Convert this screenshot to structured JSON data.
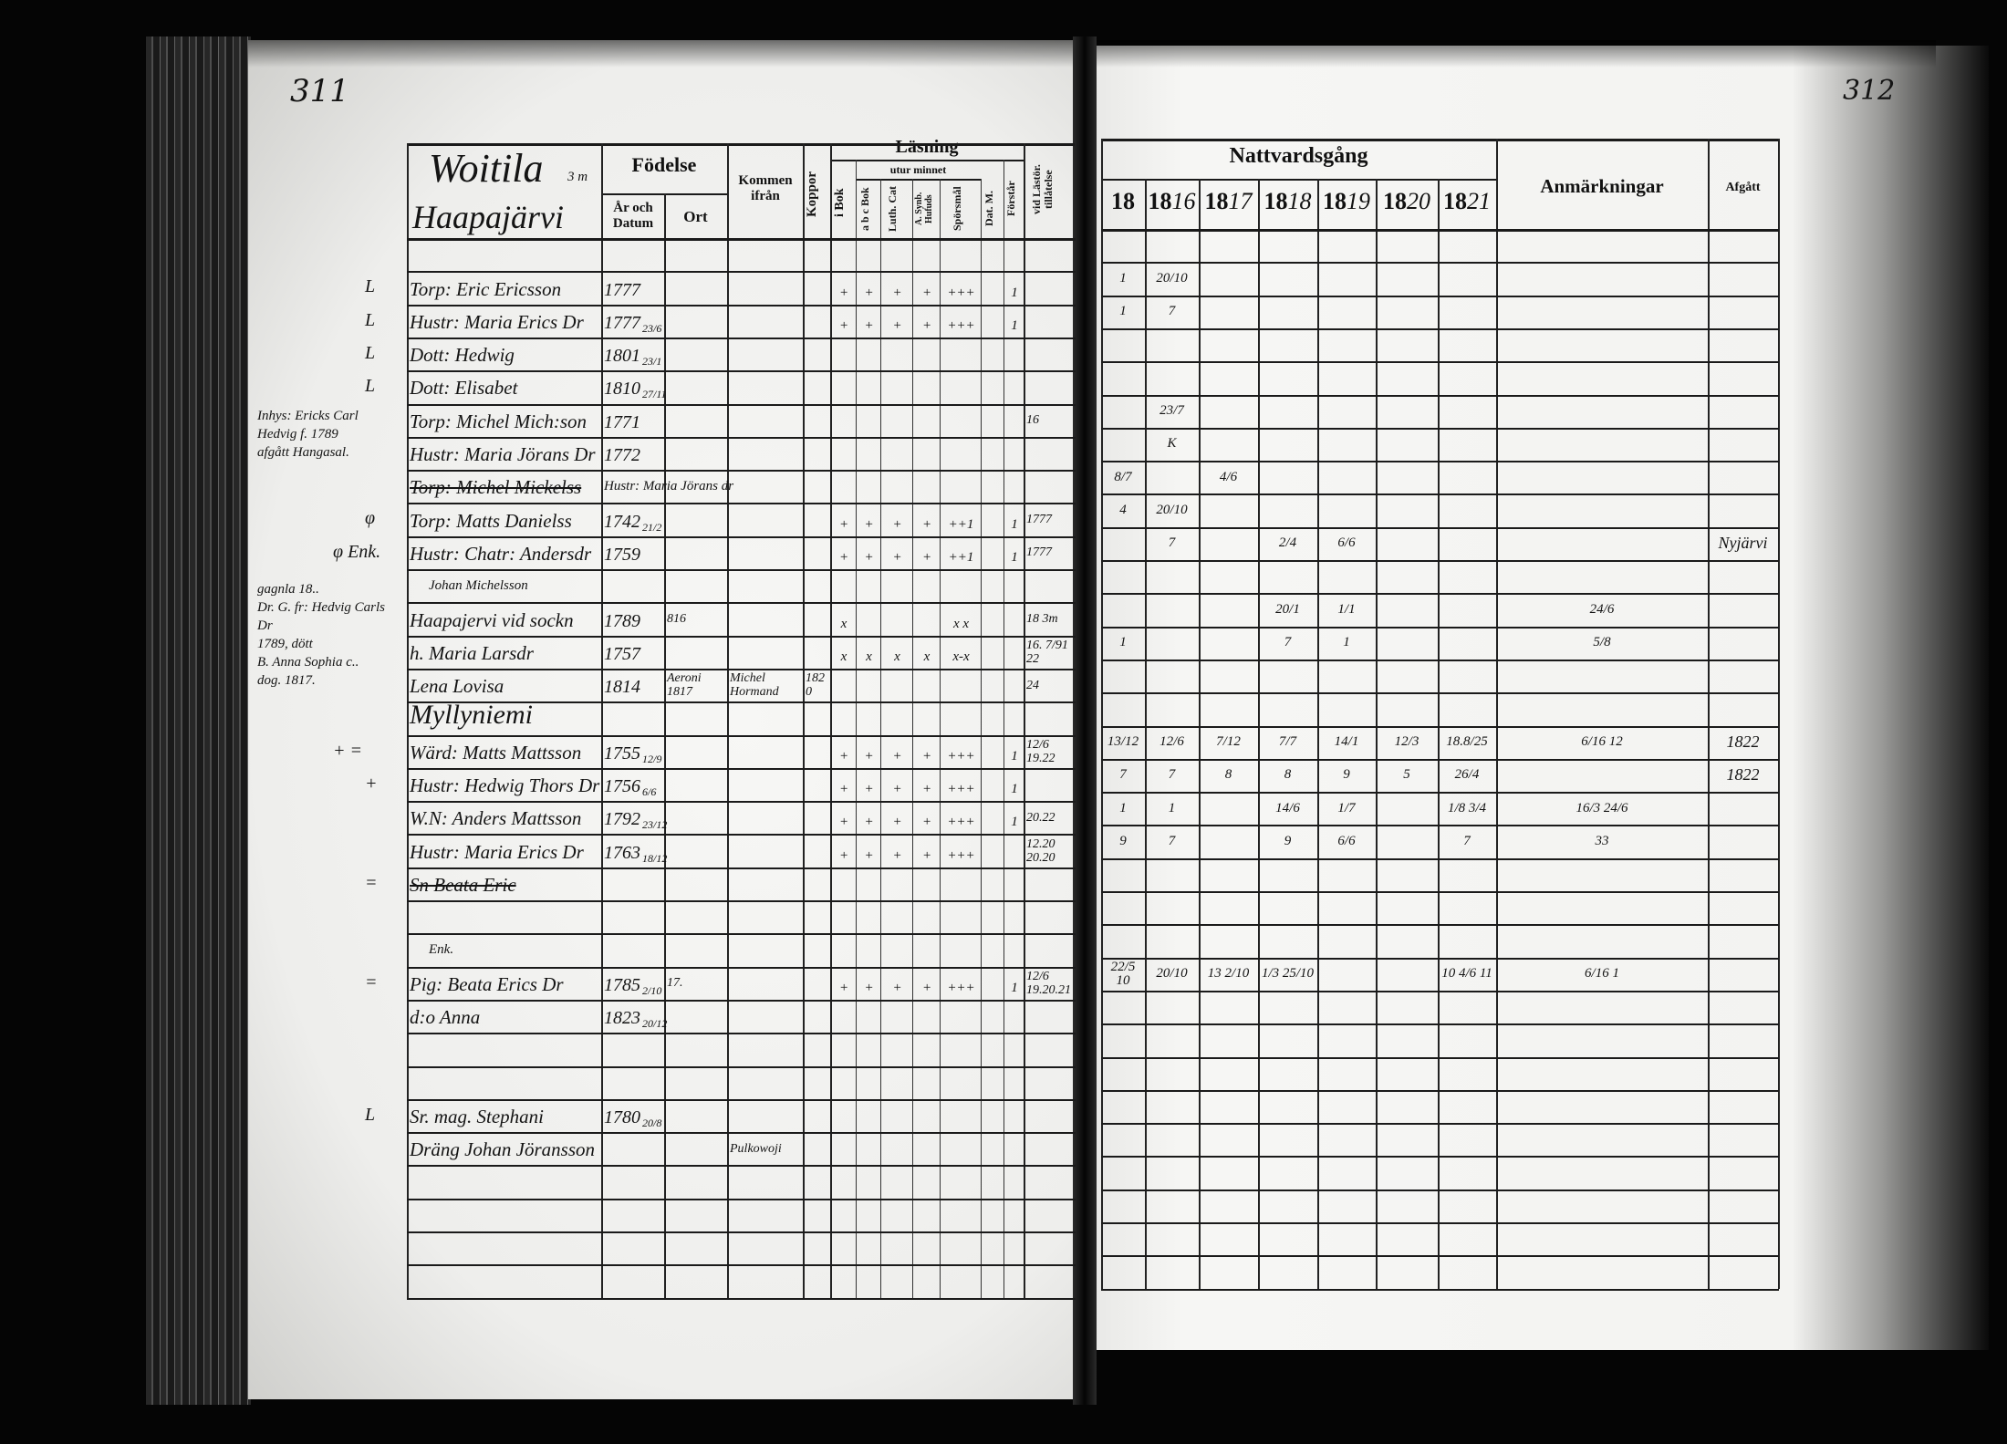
{
  "page_numbers": {
    "left": "311",
    "right": "312"
  },
  "left": {
    "header": {
      "place_name": "Woitila",
      "place_sub": "3 m",
      "village": "Haapajärvi",
      "fodelse": "Födelse",
      "ar_och_datum": "År och Datum",
      "ort": "Ort",
      "kommen_ifran": "Kommen ifrån",
      "koppor": "Koppor",
      "lasning": "Läsning",
      "utur_minnet": "utur minnet",
      "i_bok": "i Bok",
      "abc_bok": "a b c Bok",
      "luth_cat": "Luth. Cat",
      "a_synb": "A. Synb. Hufuds",
      "sporsmal": "Spörsmål",
      "dat_m": "Dat. M.",
      "forstar": "Förstår",
      "vid_lastor": "vid Lästör. tillåtelse"
    },
    "margin_notes": [
      [
        "Inhys: Ericks Carl",
        "Hedvig f. 1789",
        "afgått Hangasal."
      ],
      [
        "gagnla 18..",
        "Dr. G. fr: Hedvig Carls Dr",
        "1789, dött",
        "B. Anna Sophia c..",
        "dog. 1817."
      ]
    ],
    "rows": [
      {},
      {
        "margin": "L",
        "name": "Torp: Eric Ericsson",
        "year": "1777",
        "i_bok": "+",
        "abc_bok": "+",
        "luth_cat": "+",
        "a_synb": "+",
        "sporsmal": "+++",
        "forstar": "1"
      },
      {
        "margin": "L",
        "name": "Hustr: Maria Erics Dr",
        "year": "1777",
        "date": "23/6",
        "i_bok": "+",
        "abc_bok": "+",
        "luth_cat": "+",
        "a_synb": "+",
        "sporsmal": "+++",
        "forstar": "1"
      },
      {
        "margin": "L",
        "name": "Dott: Hedwig",
        "year": "1801",
        "date": "23/1"
      },
      {
        "margin": "L",
        "name": "Dott: Elisabet",
        "year": "1810",
        "date": "27/11"
      },
      {
        "name": "Torp: Michel Mich:son",
        "year": "1771",
        "vid_lastor": "16"
      },
      {
        "name": "Hustr: Maria Jörans Dr",
        "year": "1772"
      },
      {
        "name": "Torp: Michel Mickelss",
        "struck": true
      },
      {
        "margin": "φ",
        "note_above": "Hustr: Maria Jörans dr",
        "name": "Torp: Matts Danielss",
        "year": "1742",
        "date": "21/2",
        "i_bok": "+",
        "abc_bok": "+",
        "luth_cat": "+",
        "a_synb": "+",
        "sporsmal": "++1",
        "forstar": "1",
        "vid_lastor": "1777"
      },
      {
        "margin": "φ Enk.",
        "name": "Hustr: Chatr: Andersdr",
        "year": "1759",
        "i_bok": "+",
        "abc_bok": "+",
        "luth_cat": "+",
        "a_synb": "+",
        "sporsmal": "++1",
        "forstar": "1",
        "vid_lastor": "1777"
      },
      {},
      {
        "note_above": "Johan Michelsson",
        "name": "Haapajervi vid sockn",
        "year": "1789",
        "ort": "816",
        "i_bok": "x",
        "sporsmal": "x x",
        "vid_lastor": "18 3m"
      },
      {
        "name": "h. Maria Larsdr",
        "year": "1757",
        "i_bok": "x",
        "abc_bok": "x",
        "luth_cat": "x",
        "a_synb": "x",
        "sporsmal": "x-x",
        "vid_lastor": "16. 7/91 22"
      },
      {
        "name": "Lena Lovisa",
        "year": "1814",
        "ort": "Aeroni 1817",
        "kommen": "Michel Hormand",
        "koppor": "1820",
        "vid_lastor": "24"
      },
      {
        "name": "Myllyniemi",
        "heading": true
      },
      {
        "margin": "+ =",
        "name": "Wärd: Matts Mattsson",
        "year": "1755",
        "date": "12/9",
        "i_bok": "+",
        "abc_bok": "+",
        "luth_cat": "+",
        "a_synb": "+",
        "sporsmal": "+++",
        "forstar": "1",
        "vid_lastor": "12/6 19.22"
      },
      {
        "margin": "+",
        "name": "Hustr: Hedwig Thors Dr",
        "year": "1756",
        "date": "6/6",
        "i_bok": "+",
        "abc_bok": "+",
        "luth_cat": "+",
        "a_synb": "+",
        "sporsmal": "+++",
        "forstar": "1"
      },
      {
        "name": "W.N: Anders Mattsson",
        "year": "1792",
        "date": "23/12",
        "i_bok": "+",
        "abc_bok": "+",
        "luth_cat": "+",
        "a_synb": "+",
        "sporsmal": "+++",
        "forstar": "1",
        "vid_lastor": "20.22"
      },
      {
        "name": "Hustr: Maria Erics Dr",
        "year": "1763",
        "date": "18/12",
        "i_bok": "+",
        "abc_bok": "+",
        "luth_cat": "+",
        "a_synb": "+",
        "sporsmal": "+++",
        "vid_lastor": "12.20 20.20"
      },
      {
        "margin": "=",
        "name": "Sn Beata Eric",
        "struck": true
      },
      {},
      {},
      {
        "margin": "=",
        "note_above": "Enk.",
        "name": "Pig: Beata Erics Dr",
        "year": "1785",
        "date": "2/10",
        "ort": "17.",
        "i_bok": "+",
        "abc_bok": "+",
        "luth_cat": "+",
        "a_synb": "+",
        "sporsmal": "+++",
        "forstar": "1",
        "vid_lastor": "12/6 19.20.21"
      },
      {
        "name": "d:o Anna",
        "year": "1823",
        "date": "20/12"
      },
      {},
      {},
      {
        "margin": "L",
        "name": "Sr. mag. Stephani",
        "year": "1780",
        "date": "20/8"
      },
      {
        "name": "Dräng Johan Jöransson",
        "kommen": "Pulkowoji"
      },
      {},
      {},
      {},
      {}
    ]
  },
  "right": {
    "header": {
      "nattvardsgang": "Nattvardsgång",
      "years": {
        "y18": {
          "printed": "18",
          "written": ""
        },
        "y1816": {
          "printed": "18",
          "written": "16"
        },
        "y1817": {
          "printed": "18",
          "written": "17"
        },
        "y1818": {
          "printed": "18",
          "written": "18"
        },
        "y1819": {
          "printed": "18",
          "written": "19"
        },
        "y1820": {
          "printed": "18",
          "written": "20"
        },
        "y1821": {
          "printed": "18",
          "written": "21"
        }
      },
      "anmarkningar": "Anmärkningar",
      "afgatt": "Afgått"
    },
    "rows": [
      {},
      {
        "y18": "1",
        "y1816": "20/10"
      },
      {
        "y18": "1",
        "y1816": "7"
      },
      {},
      {},
      {
        "y1816": "23/7"
      },
      {
        "y1816": "K"
      },
      {
        "y18": "8/7",
        "y1817": "4/6"
      },
      {
        "y18": "4",
        "y1816": "20/10"
      },
      {
        "y1816": "7",
        "y1818": "2/4",
        "y1819": "6/6",
        "afgatt": "Nyjärvi"
      },
      {},
      {
        "y1818": "20/1",
        "y1819": "1/1",
        "anm": "24/6"
      },
      {
        "y18": "1",
        "y1818": "7",
        "y1819": "1",
        "anm": "5/8"
      },
      {},
      {},
      {
        "y18": "13/12",
        "y1816": "12/6",
        "y1817": "7/12",
        "y1818": "7/7",
        "y1819": "14/1",
        "y1820": "12/3",
        "y1821": "18.8/25",
        "anm": "6/16 12",
        "afgatt": "1822"
      },
      {
        "y18": "7",
        "y1816": "7",
        "y1817": "8",
        "y1818": "8",
        "y1819": "9",
        "y1820": "5",
        "y1821": "26/4",
        "afgatt": "1822"
      },
      {
        "y18": "1",
        "y1816": "1",
        "y1818": "14/6",
        "y1819": "1/7",
        "y1821": "1/8 3/4",
        "anm": "16/3 24/6"
      },
      {
        "y18": "9",
        "y1816": "7",
        "y1818": "9",
        "y1819": "6/6",
        "y1821": "7",
        "anm": "33"
      },
      {},
      {},
      {},
      {
        "y18": "22/5 10",
        "y1816": "20/10",
        "y1817": "13 2/10",
        "y1818": "1/3 25/10",
        "y1821": "10 4/6 11",
        "anm": "6/16 1"
      },
      {},
      {},
      {},
      {},
      {},
      {},
      {},
      {},
      {}
    ]
  },
  "colors": {
    "paper": "#f3f3f1",
    "ink": "#141414",
    "background": "#050505"
  }
}
